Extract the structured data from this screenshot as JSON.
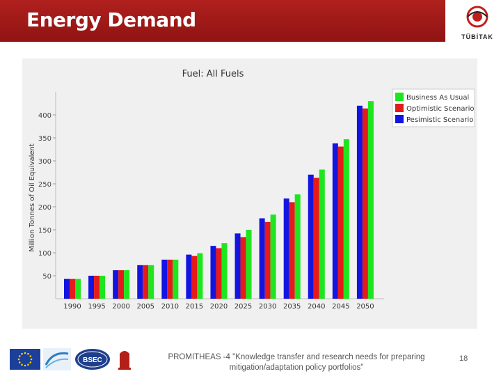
{
  "slide": {
    "title": "Energy Demand",
    "footer": "PROMITHEAS -4 \"Knowledge transfer and research needs for preparing mitigation/adaptation policy portfolios\"",
    "page_number": "18",
    "brand_color": "#9c1a18"
  },
  "logos": {
    "tubitak": "TÜBİTAK",
    "bsec": "BSEC"
  },
  "chart_data": {
    "type": "bar",
    "title": "Fuel: All Fuels",
    "xlabel": "",
    "ylabel": "Million Tonnes of Oil Equivalent",
    "categories": [
      "1990",
      "1995",
      "2000",
      "2005",
      "2010",
      "2015",
      "2020",
      "2025",
      "2030",
      "2035",
      "2040",
      "2045",
      "2050"
    ],
    "series": [
      {
        "name": "Pesimistic Scenario",
        "color": "#1414e0",
        "values": [
          43,
          50,
          62,
          73,
          85,
          96,
          115,
          142,
          175,
          218,
          270,
          338,
          420
        ]
      },
      {
        "name": "Optimistic Scenario",
        "color": "#e51a1a",
        "values": [
          43,
          50,
          62,
          73,
          85,
          93,
          110,
          134,
          167,
          210,
          263,
          331,
          414
        ]
      },
      {
        "name": "Business As Usual",
        "color": "#1ee61e",
        "values": [
          43,
          50,
          62,
          73,
          85,
          99,
          121,
          150,
          183,
          227,
          281,
          347,
          430
        ]
      }
    ],
    "legend_order": [
      "Business As Usual",
      "Optimistic Scenario",
      "Pesimistic Scenario"
    ],
    "yticks": [
      50,
      100,
      150,
      200,
      250,
      300,
      350,
      400
    ],
    "ylim": [
      0,
      450
    ],
    "grid": false,
    "legend_position": "top-right"
  }
}
